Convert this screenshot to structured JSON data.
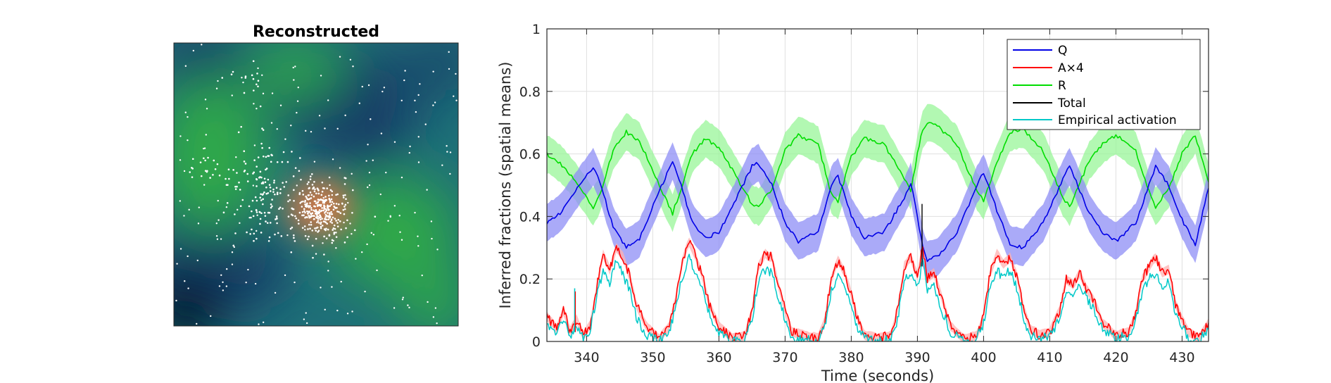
{
  "left_panel": {
    "title": "Reconstructed",
    "colors": {
      "background": "#1f6f78",
      "dark_blue": "#123a66",
      "green": "#2fa84a",
      "orange": "#d2784a",
      "black": "#050608",
      "dots": "#ffffff"
    }
  },
  "chart_data": {
    "type": "line",
    "xlabel": "Time (seconds)",
    "ylabel": "Inferred fractions (spatial means)",
    "xlim": [
      334,
      434
    ],
    "ylim": [
      0,
      1
    ],
    "xticks": [
      340,
      350,
      360,
      370,
      380,
      390,
      400,
      410,
      420,
      430
    ],
    "yticks": [
      0,
      0.2,
      0.4,
      0.6,
      0.8,
      1
    ],
    "grid": true,
    "legend_position": "top-right",
    "legend": [
      "Q",
      "A×4",
      "R",
      "Total",
      "Empirical activation"
    ],
    "colors": {
      "Q": "#0000e6",
      "A×4": "#ff0000",
      "R": "#00dd00",
      "Total": "#000000",
      "Empirical activation": "#00c8c8",
      "Q_band": "#8e8ef5",
      "R_band": "#98f598",
      "A_band": "#ffb0b0"
    },
    "series": [
      {
        "name": "Q",
        "band_halfwidth": 0.06,
        "x": [
          334,
          336,
          338,
          341,
          342,
          344,
          346,
          348,
          351,
          353,
          354,
          356,
          358,
          360,
          362,
          365,
          366,
          368,
          370,
          372,
          375,
          377,
          378,
          380,
          382,
          385,
          388,
          389,
          390,
          390.8,
          391.5,
          393,
          396,
          399,
          400,
          402,
          404,
          406,
          409,
          412,
          413,
          414,
          416,
          418,
          420,
          423,
          425,
          426,
          428,
          430,
          432,
          434
        ],
        "y": [
          0.38,
          0.41,
          0.47,
          0.56,
          0.51,
          0.37,
          0.3,
          0.33,
          0.48,
          0.58,
          0.52,
          0.38,
          0.33,
          0.35,
          0.43,
          0.56,
          0.57,
          0.5,
          0.38,
          0.32,
          0.35,
          0.5,
          0.53,
          0.4,
          0.33,
          0.35,
          0.46,
          0.51,
          0.4,
          0.3,
          0.26,
          0.27,
          0.35,
          0.5,
          0.54,
          0.42,
          0.31,
          0.3,
          0.38,
          0.52,
          0.56,
          0.51,
          0.41,
          0.35,
          0.32,
          0.38,
          0.5,
          0.56,
          0.5,
          0.39,
          0.31,
          0.49
        ]
      },
      {
        "name": "R",
        "band_halfwidth": 0.06,
        "x": [
          334,
          336,
          338,
          341,
          342,
          344,
          346,
          348,
          351,
          353,
          354,
          356,
          358,
          360,
          362,
          365,
          366,
          368,
          370,
          372,
          375,
          377,
          378,
          380,
          382,
          385,
          388,
          389,
          390,
          390.8,
          391.5,
          393,
          396,
          399,
          400,
          402,
          404,
          406,
          409,
          412,
          413,
          414,
          416,
          418,
          420,
          423,
          425,
          426,
          428,
          430,
          432,
          434
        ],
        "y": [
          0.6,
          0.57,
          0.52,
          0.43,
          0.47,
          0.61,
          0.67,
          0.64,
          0.5,
          0.41,
          0.47,
          0.6,
          0.65,
          0.62,
          0.55,
          0.44,
          0.43,
          0.49,
          0.61,
          0.66,
          0.63,
          0.47,
          0.45,
          0.59,
          0.65,
          0.63,
          0.52,
          0.48,
          0.6,
          0.68,
          0.7,
          0.69,
          0.63,
          0.48,
          0.45,
          0.57,
          0.67,
          0.68,
          0.61,
          0.46,
          0.43,
          0.48,
          0.58,
          0.63,
          0.66,
          0.61,
          0.48,
          0.43,
          0.49,
          0.6,
          0.66,
          0.51
        ]
      },
      {
        "name": "A×4",
        "band_halfwidth": 0.015,
        "x": [
          334,
          335.5,
          336.5,
          337.5,
          338.5,
          339.5,
          340.5,
          341.5,
          342.5,
          343.5,
          344.5,
          345.5,
          346.5,
          347.5,
          349,
          351,
          352.5,
          353.5,
          354.5,
          355.5,
          356.5,
          357.5,
          358.5,
          360,
          362,
          364,
          365,
          366,
          367,
          368,
          369,
          370,
          371,
          373,
          375,
          376,
          377,
          378,
          379,
          380,
          381,
          382,
          384,
          386,
          387,
          388,
          389,
          390,
          390.8,
          391.5,
          392.5,
          393.5,
          395,
          397,
          399,
          400,
          401,
          402,
          403,
          404,
          405,
          406,
          407,
          408.5,
          410,
          411.5,
          412.5,
          413.5,
          414.5,
          415.5,
          416.5,
          418,
          420,
          422,
          423,
          424,
          425,
          426,
          427,
          428,
          429,
          430,
          431,
          432.5,
          434
        ],
        "y": [
          0.08,
          0.04,
          0.1,
          0.03,
          0.07,
          0.02,
          0.05,
          0.17,
          0.28,
          0.23,
          0.3,
          0.27,
          0.21,
          0.12,
          0.05,
          0.01,
          0.05,
          0.14,
          0.26,
          0.32,
          0.27,
          0.21,
          0.12,
          0.05,
          0.01,
          0.02,
          0.1,
          0.24,
          0.28,
          0.27,
          0.18,
          0.1,
          0.03,
          0.02,
          0.01,
          0.07,
          0.2,
          0.26,
          0.22,
          0.15,
          0.07,
          0.02,
          0.01,
          0.02,
          0.1,
          0.24,
          0.27,
          0.21,
          0.3,
          0.2,
          0.22,
          0.15,
          0.05,
          0.01,
          0.02,
          0.08,
          0.22,
          0.28,
          0.25,
          0.27,
          0.21,
          0.11,
          0.04,
          0.02,
          0.03,
          0.1,
          0.2,
          0.18,
          0.22,
          0.17,
          0.14,
          0.06,
          0.02,
          0.03,
          0.09,
          0.2,
          0.24,
          0.27,
          0.22,
          0.23,
          0.12,
          0.07,
          0.03,
          0.01,
          0.06
        ]
      },
      {
        "name": "Empirical activation",
        "x": [
          334,
          335.5,
          336.5,
          337.5,
          338.5,
          339.5,
          340.5,
          341.5,
          342.5,
          343.5,
          344.5,
          345.5,
          346.5,
          347.5,
          349,
          351,
          352.5,
          353.5,
          354.5,
          355.5,
          356.5,
          357.5,
          358.5,
          360,
          362,
          364,
          365,
          366,
          367,
          368,
          369,
          370,
          371,
          373,
          375,
          376,
          377,
          378,
          379,
          380,
          381,
          382,
          384,
          386,
          387,
          388,
          389,
          390,
          390.8,
          391.5,
          392.5,
          393.5,
          395,
          397,
          399,
          400,
          401,
          402,
          403,
          404,
          405,
          406,
          407,
          408.5,
          410,
          411.5,
          412.5,
          413.5,
          414.5,
          415.5,
          416.5,
          418,
          420,
          422,
          423,
          424,
          425,
          426,
          427,
          428,
          429,
          430,
          431,
          432.5,
          434
        ],
        "y": [
          0.06,
          0.02,
          0.08,
          0.01,
          0.05,
          0.01,
          0.03,
          0.14,
          0.23,
          0.19,
          0.26,
          0.21,
          0.17,
          0.08,
          0.02,
          0.0,
          0.03,
          0.11,
          0.21,
          0.27,
          0.22,
          0.18,
          0.09,
          0.03,
          0.0,
          0.01,
          0.07,
          0.2,
          0.23,
          0.22,
          0.14,
          0.07,
          0.01,
          0.01,
          0.0,
          0.05,
          0.16,
          0.21,
          0.18,
          0.11,
          0.04,
          0.01,
          0.0,
          0.01,
          0.07,
          0.2,
          0.22,
          0.17,
          0.26,
          0.16,
          0.18,
          0.11,
          0.03,
          0.0,
          0.01,
          0.06,
          0.18,
          0.23,
          0.2,
          0.23,
          0.17,
          0.08,
          0.02,
          0.01,
          0.02,
          0.07,
          0.16,
          0.15,
          0.18,
          0.14,
          0.11,
          0.04,
          0.01,
          0.02,
          0.07,
          0.16,
          0.2,
          0.22,
          0.18,
          0.19,
          0.09,
          0.05,
          0.01,
          0.0,
          0.04
        ]
      },
      {
        "name": "Total",
        "x": [
          390.7,
          390.7
        ],
        "y": [
          0.24,
          0.44
        ]
      }
    ],
    "spikes": [
      {
        "x": 338.2,
        "y": 0.17
      }
    ]
  }
}
